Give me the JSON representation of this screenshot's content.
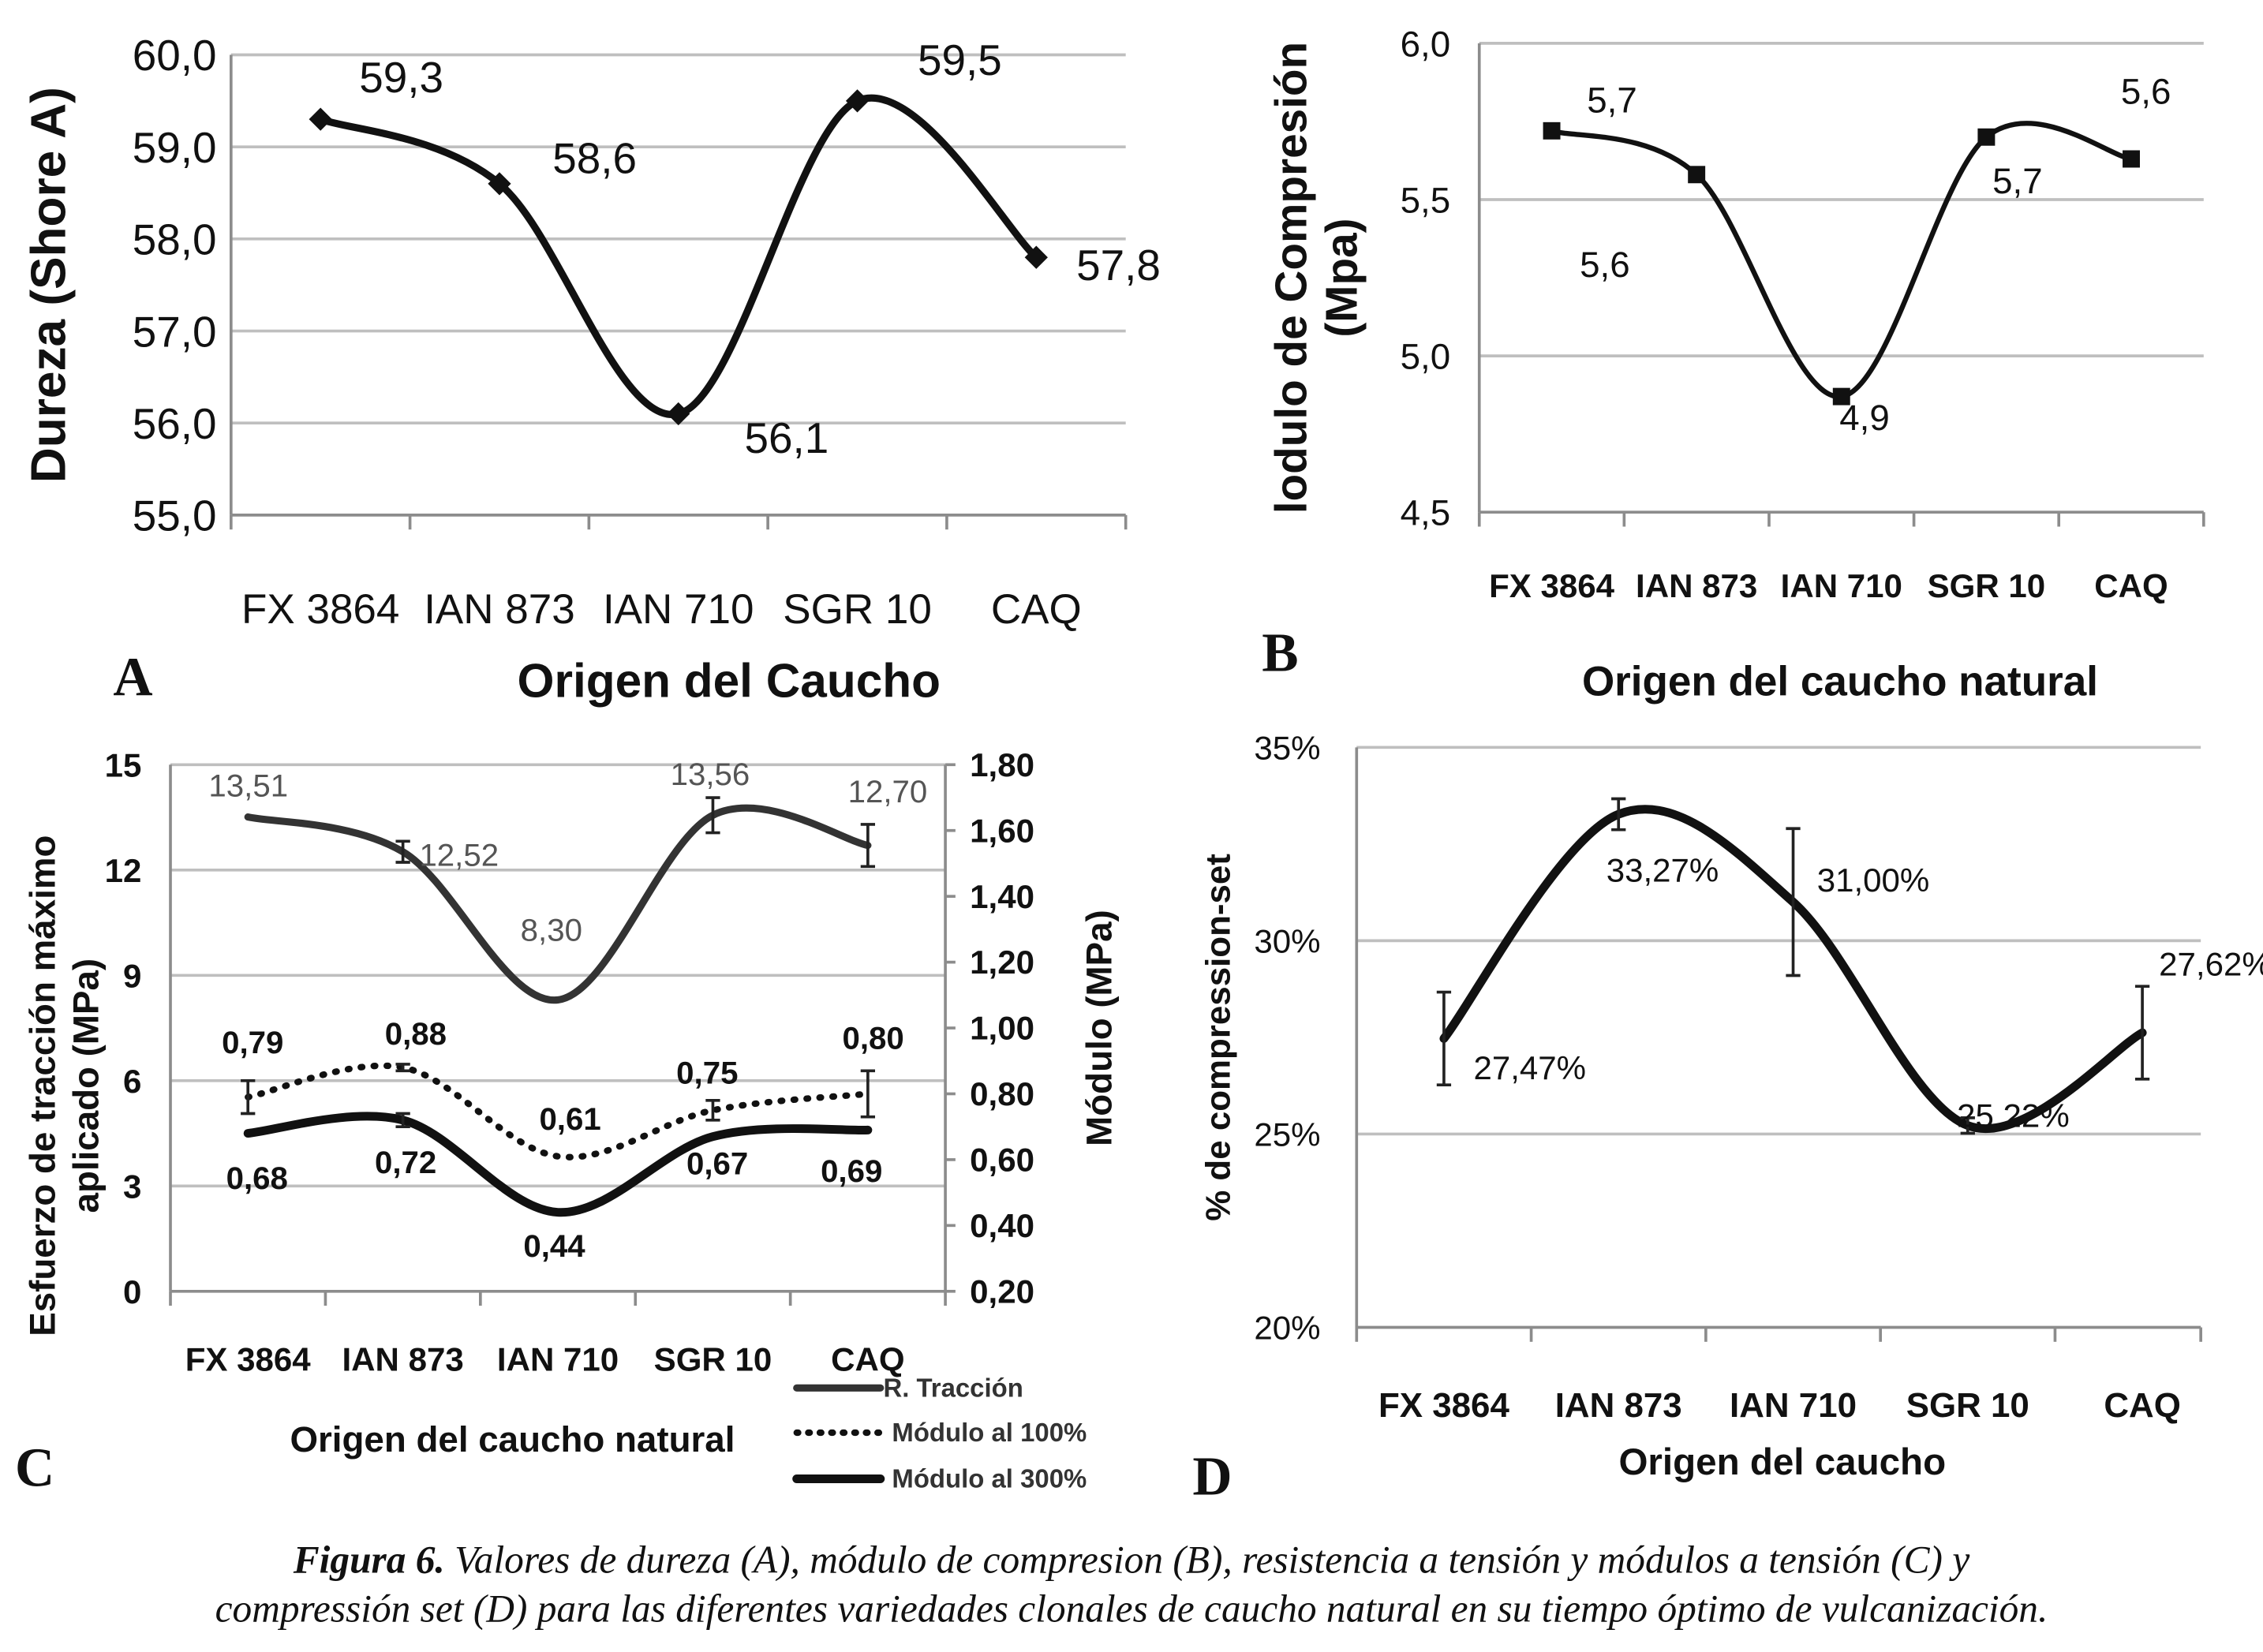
{
  "colors": {
    "line": "#111111",
    "grid": "#bfbfbf",
    "axis": "#8c8c8c",
    "tension_label": "#555555"
  },
  "caption": {
    "figure_label": "Figura 6.",
    "line1": " Valores de dureza (A),  módulo de compresion (B), resistencia a tensión y módulos a tensión (C) y",
    "line2": "compressión set (D) para las diferentes variedades clonales de caucho natural en su tiempo óptimo de vulcanización."
  },
  "chart_data": [
    {
      "panel": "A",
      "type": "line",
      "categories": [
        "FX 3864",
        "IAN 873",
        "IAN 710",
        "SGR 10",
        "CAQ"
      ],
      "ylabel": "Dureza (Shore A)",
      "xlabel": "Origen del Caucho",
      "ylim": [
        55,
        60
      ],
      "ytick_labels": [
        "55,0",
        "56,0",
        "57,0",
        "58,0",
        "59,0",
        "60,0"
      ],
      "grid": true,
      "series": [
        {
          "values": [
            59.3,
            58.6,
            56.1,
            59.5,
            57.8
          ],
          "labels": [
            "59,3",
            "58,6",
            "56,1",
            "59,5",
            "57,8"
          ],
          "marker": "diamond",
          "style": "solid",
          "smooth": true
        }
      ]
    },
    {
      "panel": "B",
      "type": "line",
      "categories": [
        "FX 3864",
        "IAN 873",
        "IAN 710",
        "SGR 10",
        "CAQ"
      ],
      "ylabel_lines": [
        "lodulo de Compresión",
        "(Mpa)"
      ],
      "xlabel": "Origen del caucho natural",
      "ylim": [
        4.5,
        6.0
      ],
      "ytick_labels": [
        "4,5",
        "5,0",
        "5,5",
        "6,0"
      ],
      "grid": true,
      "series": [
        {
          "values": [
            5.72,
            5.58,
            4.87,
            5.7,
            5.63
          ],
          "labels": [
            "5,7",
            "5,6",
            "4,9",
            "5,7",
            "5,6"
          ],
          "marker": "square",
          "style": "solid",
          "smooth": true
        }
      ]
    },
    {
      "panel": "C",
      "type": "line",
      "categories": [
        "FX 3864",
        "IAN 873",
        "IAN 710",
        "SGR 10",
        "CAQ"
      ],
      "ylabel_lines": [
        "Esfuerzo de tracción máximo",
        "aplicado (MPa)"
      ],
      "ylabel_right": "Módulo (MPa)",
      "xlabel": "Origen del caucho natural",
      "ylim": [
        0,
        15
      ],
      "ytick_labels": [
        "0",
        "3",
        "6",
        "9",
        "12",
        "15"
      ],
      "ylim_right": [
        0.2,
        1.8
      ],
      "ytick_labels_right": [
        "0,20",
        "0,40",
        "0,60",
        "0,80",
        "1,00",
        "1,20",
        "1,40",
        "1,60",
        "1,80"
      ],
      "grid": true,
      "legend_position": "bottom-right",
      "series": [
        {
          "name": "R. Tracción",
          "axis": "left",
          "values": [
            13.51,
            12.52,
            8.3,
            13.56,
            12.7
          ],
          "errors": [
            0,
            0.3,
            0,
            0.5,
            0.6
          ],
          "labels": [
            "13,51",
            "12,52",
            "8,30",
            "13,56",
            "12,70"
          ],
          "style": "solid",
          "smooth": true
        },
        {
          "name": "Módulo al 100%",
          "axis": "right",
          "values": [
            0.79,
            0.88,
            0.61,
            0.75,
            0.8
          ],
          "errors": [
            0.05,
            0.01,
            0,
            0.03,
            0.07
          ],
          "labels": [
            "0,79",
            "0,88",
            "0,61",
            "0,75",
            "0,80"
          ],
          "style": "dotted",
          "smooth": true
        },
        {
          "name": "Módulo al 300%",
          "axis": "right",
          "values": [
            0.68,
            0.72,
            0.44,
            0.67,
            0.69
          ],
          "errors": [
            0,
            0.02,
            0,
            0,
            0
          ],
          "labels": [
            "0,68",
            "0,72",
            "0,44",
            "0,67",
            "0,69"
          ],
          "style": "thick",
          "smooth": true
        }
      ]
    },
    {
      "panel": "D",
      "type": "line",
      "categories": [
        "FX 3864",
        "IAN 873",
        "IAN 710",
        "SGR 10",
        "CAQ"
      ],
      "ylabel": "% de compression-set",
      "xlabel": "Origen del caucho",
      "ylim": [
        20,
        35
      ],
      "ytick_labels": [
        "20%",
        "25%",
        "30%",
        "35%"
      ],
      "grid": true,
      "series": [
        {
          "values": [
            27.47,
            33.27,
            31.0,
            25.22,
            27.62
          ],
          "errors": [
            1.2,
            0.4,
            1.9,
            0.2,
            1.2
          ],
          "labels": [
            "27,47%",
            "33,27%",
            "31,00%",
            "25,22%",
            "27,62%"
          ],
          "style": "thick",
          "smooth": true
        }
      ]
    }
  ]
}
